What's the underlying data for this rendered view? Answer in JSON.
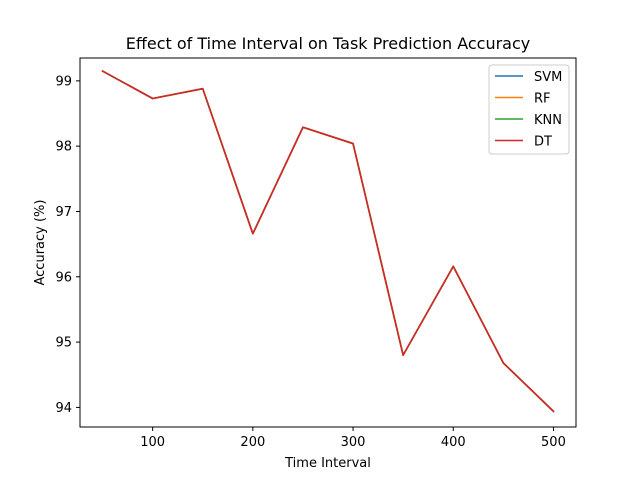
{
  "chart_data": {
    "type": "line",
    "title": "Effect of Time Interval on Task Prediction Accuracy",
    "xlabel": "Time Interval",
    "ylabel": "Accuracy (%)",
    "x": [
      50,
      100,
      150,
      200,
      250,
      300,
      350,
      400,
      450,
      500
    ],
    "xlim": [
      27.5,
      522.5
    ],
    "ylim": [
      93.7,
      99.35
    ],
    "xticks": [
      100,
      200,
      300,
      400,
      500
    ],
    "yticks": [
      94,
      95,
      96,
      97,
      98,
      99
    ],
    "grid": false,
    "legend_position": "top-right",
    "series": [
      {
        "name": "SVM",
        "color": "#1f77b4",
        "values": [
          99.15,
          98.73,
          98.88,
          96.66,
          98.29,
          98.04,
          94.8,
          96.16,
          94.68,
          93.94
        ]
      },
      {
        "name": "RF",
        "color": "#ff7f0e",
        "values": [
          99.15,
          98.73,
          98.88,
          96.66,
          98.29,
          98.04,
          94.8,
          96.16,
          94.68,
          93.94
        ]
      },
      {
        "name": "KNN",
        "color": "#2ca02c",
        "values": [
          99.15,
          98.73,
          98.88,
          96.66,
          98.29,
          98.04,
          94.8,
          96.16,
          94.68,
          93.94
        ]
      },
      {
        "name": "DT",
        "color": "#d62728",
        "values": [
          99.15,
          98.73,
          98.88,
          96.66,
          98.29,
          98.04,
          94.8,
          96.16,
          94.68,
          93.94
        ]
      }
    ]
  }
}
